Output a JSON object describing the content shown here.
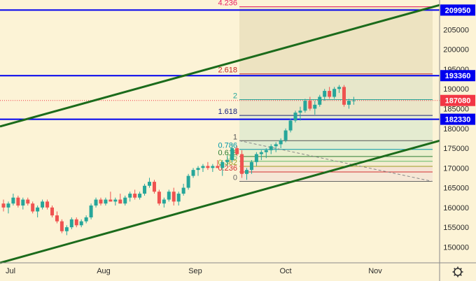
{
  "chart_data": {
    "type": "candlestick",
    "x_ticks": [
      "Jul",
      "Aug",
      "Sep",
      "Oct",
      "Nov"
    ],
    "y_ticks": [
      205000,
      200000,
      195000,
      190000,
      185000,
      180000,
      175000,
      170000,
      165000,
      160000,
      155000,
      150000
    ],
    "ylim": [
      146000,
      212500
    ],
    "horizontal_levels": [
      {
        "label": "209950",
        "value": 209950,
        "color": "#0000ee"
      },
      {
        "label": "193360",
        "value": 193360,
        "color": "#0000ee"
      },
      {
        "label": "182330",
        "value": 182330,
        "color": "#0000ee"
      }
    ],
    "price_tag": {
      "label": "187080",
      "value": 187080,
      "color": "#f23645"
    },
    "fibonacci": [
      {
        "label": "4.236",
        "value": 210800,
        "color": "#e91e63"
      },
      {
        "label": "2.618",
        "value": 193800,
        "color": "#c62828"
      },
      {
        "label": "2",
        "value": 187300,
        "color": "#26a69a"
      },
      {
        "label": "1.618",
        "value": 183300,
        "color": "#1a237e"
      },
      {
        "label": "1",
        "value": 176900,
        "color": "#555555"
      },
      {
        "label": "0.786",
        "value": 174700,
        "color": "#0097a7"
      },
      {
        "label": "0.618",
        "value": 172900,
        "color": "#2e7d32"
      },
      {
        "label": "0.5",
        "value": 171700,
        "color": "#66bb6a"
      },
      {
        "label": "0.382",
        "value": 170400,
        "color": "#9e9d24"
      },
      {
        "label": "0.236",
        "value": 169000,
        "color": "#d32f2f"
      },
      {
        "label": "0",
        "value": 166600,
        "color": "#666666"
      }
    ],
    "trend_lines": [
      {
        "name": "upper-channel",
        "from": [
          0,
          180500
        ],
        "to": [
          640,
          211800
        ]
      },
      {
        "name": "lower-channel",
        "from": [
          0,
          146000
        ],
        "to": [
          640,
          177500
        ]
      }
    ],
    "candles": [
      [
        161000,
        162000,
        159000,
        160000
      ],
      [
        160000,
        161500,
        158500,
        161000
      ],
      [
        161000,
        163500,
        160500,
        162500
      ],
      [
        162500,
        163000,
        160000,
        160500
      ],
      [
        160500,
        162500,
        159500,
        162000
      ],
      [
        162000,
        162500,
        160500,
        161000
      ],
      [
        161000,
        161500,
        158500,
        159000
      ],
      [
        159000,
        160500,
        157500,
        160000
      ],
      [
        160000,
        162000,
        159500,
        161500
      ],
      [
        161500,
        162000,
        159500,
        160000
      ],
      [
        160000,
        160500,
        157500,
        158000
      ],
      [
        158000,
        159000,
        156000,
        156500
      ],
      [
        156500,
        157000,
        153500,
        154000
      ],
      [
        154000,
        155500,
        153000,
        155000
      ],
      [
        155000,
        157500,
        154500,
        157000
      ],
      [
        157000,
        157500,
        155000,
        155500
      ],
      [
        155500,
        157000,
        155000,
        156500
      ],
      [
        156500,
        158000,
        156000,
        157500
      ],
      [
        157500,
        161000,
        157000,
        160500
      ],
      [
        160500,
        162500,
        160000,
        162000
      ],
      [
        162000,
        162500,
        160500,
        161000
      ],
      [
        161000,
        162500,
        160500,
        162000
      ],
      [
        162000,
        164000,
        161500,
        161500
      ],
      [
        161500,
        162500,
        160500,
        162000
      ],
      [
        162000,
        163500,
        161000,
        161000
      ],
      [
        161000,
        163000,
        160500,
        162500
      ],
      [
        162500,
        164000,
        161500,
        163500
      ],
      [
        163500,
        164500,
        162000,
        162500
      ],
      [
        162500,
        164000,
        162000,
        163500
      ],
      [
        163500,
        166000,
        163000,
        165500
      ],
      [
        165500,
        167500,
        165000,
        166500
      ],
      [
        166500,
        167000,
        163500,
        164000
      ],
      [
        164000,
        164500,
        160500,
        161000
      ],
      [
        161000,
        162500,
        160000,
        162000
      ],
      [
        162000,
        164500,
        161500,
        164000
      ],
      [
        164000,
        165000,
        160500,
        161500
      ],
      [
        161500,
        164000,
        160500,
        163500
      ],
      [
        163500,
        166000,
        163000,
        165000
      ],
      [
        165000,
        168500,
        164500,
        168000
      ],
      [
        168000,
        170000,
        167500,
        169500
      ],
      [
        169500,
        170500,
        168000,
        170000
      ],
      [
        170000,
        171000,
        169000,
        170500
      ],
      [
        170500,
        171500,
        169500,
        170000
      ],
      [
        170000,
        171000,
        169000,
        170500
      ],
      [
        170500,
        172000,
        170000,
        170000
      ],
      [
        170000,
        172000,
        168000,
        171500
      ],
      [
        171500,
        173000,
        170500,
        172000
      ],
      [
        172000,
        176000,
        171500,
        175000
      ],
      [
        175000,
        175500,
        173000,
        173500
      ],
      [
        173500,
        174500,
        167500,
        168500
      ],
      [
        168500,
        170000,
        167000,
        169500
      ],
      [
        169500,
        172000,
        168500,
        171500
      ],
      [
        171500,
        174000,
        170500,
        173500
      ],
      [
        173500,
        174500,
        172000,
        174000
      ],
      [
        174000,
        175000,
        172500,
        174500
      ],
      [
        174500,
        176000,
        173500,
        175500
      ],
      [
        175500,
        176500,
        174000,
        176000
      ],
      [
        176000,
        177500,
        175000,
        177000
      ],
      [
        177000,
        180000,
        176500,
        179500
      ],
      [
        179500,
        182500,
        179000,
        182000
      ],
      [
        182000,
        184500,
        181500,
        184000
      ],
      [
        184000,
        185500,
        182000,
        184500
      ],
      [
        184500,
        187500,
        184000,
        187000
      ],
      [
        187000,
        188000,
        184500,
        185000
      ],
      [
        185000,
        187000,
        183500,
        186000
      ],
      [
        186000,
        188500,
        185500,
        188000
      ],
      [
        188000,
        190000,
        187000,
        189500
      ],
      [
        189500,
        190500,
        187500,
        188000
      ],
      [
        188000,
        190500,
        187500,
        190000
      ],
      [
        190000,
        191000,
        189000,
        190500
      ],
      [
        190500,
        191000,
        185500,
        186000
      ],
      [
        186000,
        187500,
        185000,
        187000
      ],
      [
        187000,
        188000,
        186000,
        187080
      ]
    ]
  }
}
